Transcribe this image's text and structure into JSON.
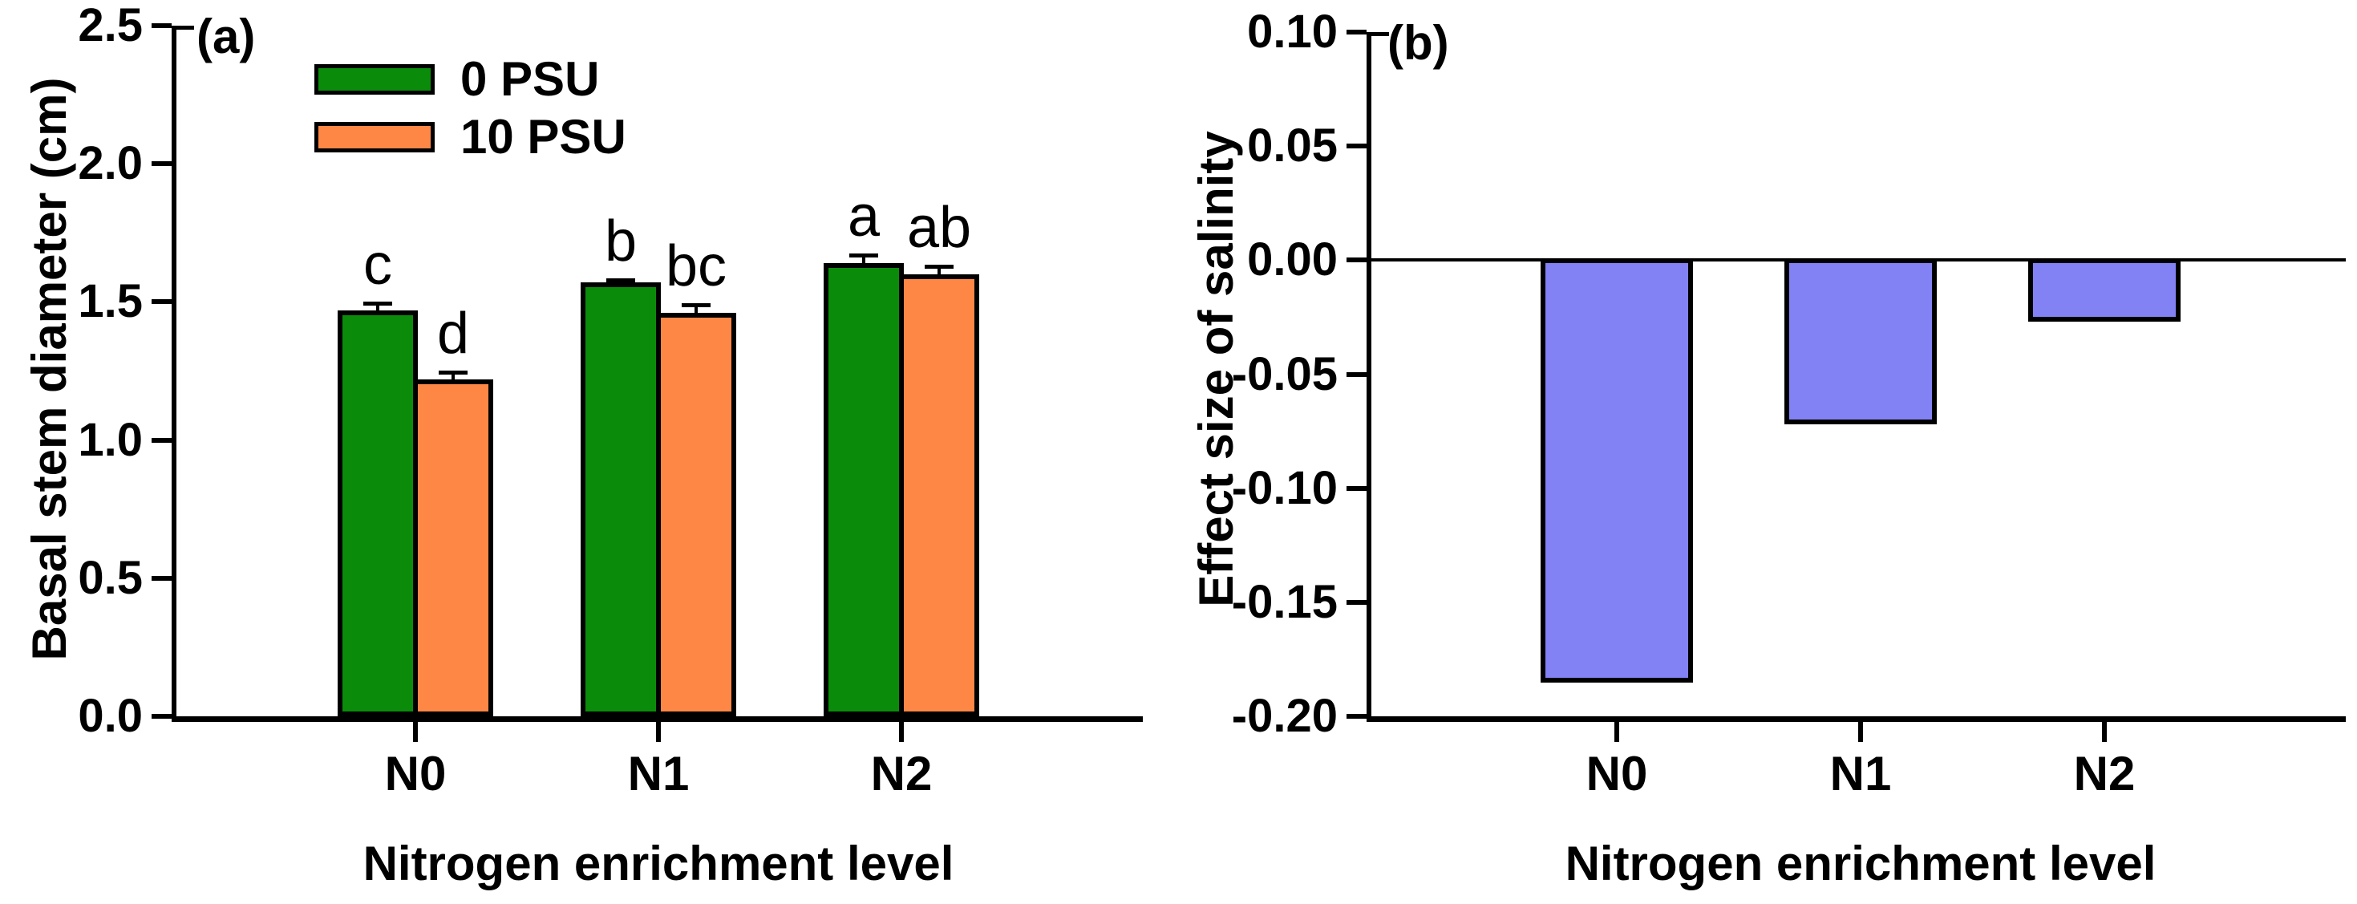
{
  "figure": {
    "background": "#FFFFFF",
    "axis_color": "#000000",
    "bar_border_color": "#000000"
  },
  "chart_data": [
    {
      "type": "bar",
      "panel_label": "(a)",
      "xlabel": "Nitrogen enrichment level",
      "ylabel": "Basal stem diameter (cm)",
      "categories": [
        "N0",
        "N1",
        "N2"
      ],
      "ylim": [
        0.0,
        2.5
      ],
      "yticks": {
        "values": [
          0.0,
          0.5,
          1.0,
          1.5,
          2.0,
          2.5
        ],
        "labels": [
          "0.0",
          "0.5",
          "1.0",
          "1.5",
          "2.0",
          "2.5"
        ]
      },
      "grid": false,
      "legend_position": "inside-top-left",
      "series": [
        {
          "name": "0 PSU",
          "color": "#0A8C0A",
          "values": [
            1.47,
            1.57,
            1.64
          ],
          "errors_plus": [
            0.025,
            0.01,
            0.03
          ],
          "sig_letters": [
            "c",
            "b",
            "a"
          ]
        },
        {
          "name": "10 PSU",
          "color": "#FF8746",
          "values": [
            1.22,
            1.46,
            1.6
          ],
          "errors_plus": [
            0.025,
            0.03,
            0.03
          ],
          "sig_letters": [
            "d",
            "bc",
            "ab"
          ]
        }
      ]
    },
    {
      "type": "bar",
      "panel_label": "(b)",
      "xlabel": "Nitrogen enrichment level",
      "ylabel": "Effect size of salinity",
      "categories": [
        "N0",
        "N1",
        "N2"
      ],
      "ylim": [
        -0.2,
        0.1
      ],
      "yticks": {
        "values": [
          0.1,
          0.05,
          0.0,
          -0.05,
          -0.1,
          -0.15,
          -0.2
        ],
        "labels": [
          "0.10",
          "0.05",
          "0.00",
          "-0.05",
          "-0.10",
          "-0.15",
          "-0.20"
        ]
      },
      "grid": false,
      "zero_line": true,
      "series": [
        {
          "name": "Effect size of salinity",
          "color": "#8282F5",
          "values": [
            -0.183,
            -0.07,
            -0.025
          ]
        }
      ]
    }
  ]
}
